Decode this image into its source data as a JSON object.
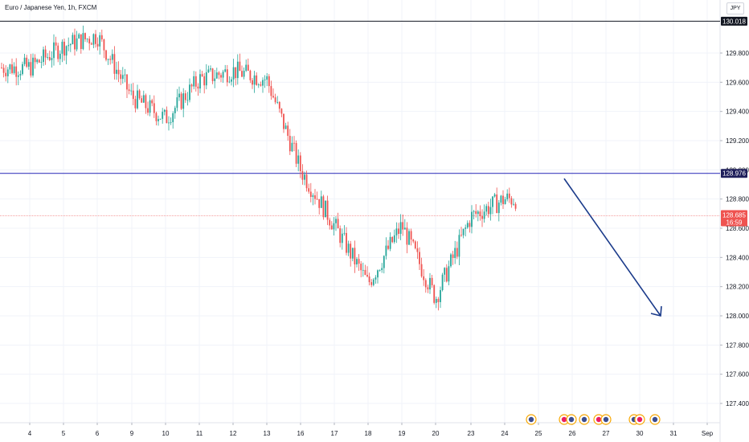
{
  "header": {
    "symbol_title": "Euro / Japanese Yen, 1h, FXCM",
    "currency": "JPY"
  },
  "price_labels": {
    "resistance_top": "130.018",
    "level_line": "128.976",
    "current_price": "128.685",
    "countdown": "16:59"
  },
  "colors": {
    "up": "#26a69a",
    "down": "#ef5350",
    "level_line": "#3f3fbf",
    "arrow": "#1a3a8a",
    "current_line": "#f4a0a0"
  },
  "chart_data": {
    "type": "candlestick",
    "title": "Euro / Japanese Yen, 1h, FXCM",
    "x_tick_labels": [
      "4",
      "5",
      "6",
      "9",
      "10",
      "11",
      "12",
      "13",
      "16",
      "17",
      "18",
      "19",
      "20",
      "23",
      "24",
      "25",
      "26",
      "27",
      "30",
      "31",
      "Sep"
    ],
    "y_tick_labels": [
      "127.400",
      "127.600",
      "127.800",
      "128.000",
      "128.200",
      "128.400",
      "128.600",
      "128.800",
      "129.000",
      "129.200",
      "129.400",
      "129.600",
      "129.800"
    ],
    "ylim": [
      127.26,
      130.13
    ],
    "horizontal_lines": [
      {
        "name": "resistance",
        "value": 130.018
      },
      {
        "name": "level",
        "value": 128.976
      },
      {
        "name": "current",
        "value": 128.685
      }
    ],
    "price_path": [
      {
        "x": "4",
        "y": 129.7
      },
      {
        "x": "5",
        "y": 129.85
      },
      {
        "x": "6",
        "y": 129.92
      },
      {
        "x": "9",
        "y": 129.5
      },
      {
        "x": "10",
        "y": 129.35
      },
      {
        "x": "11",
        "y": 129.62
      },
      {
        "x": "12",
        "y": 129.68
      },
      {
        "x": "13",
        "y": 129.62
      },
      {
        "x": "16",
        "y": 129.0
      },
      {
        "x": "17",
        "y": 128.62
      },
      {
        "x": "18",
        "y": 128.22
      },
      {
        "x": "19",
        "y": 128.62
      },
      {
        "x": "20",
        "y": 128.12
      },
      {
        "x": "23",
        "y": 128.68
      },
      {
        "x": "24",
        "y": 128.8
      }
    ],
    "projection_arrow": {
      "from": {
        "x": "25",
        "y": 128.94
      },
      "to": {
        "x": "30",
        "y": 128.0
      }
    },
    "grid": true,
    "legend": "none"
  }
}
